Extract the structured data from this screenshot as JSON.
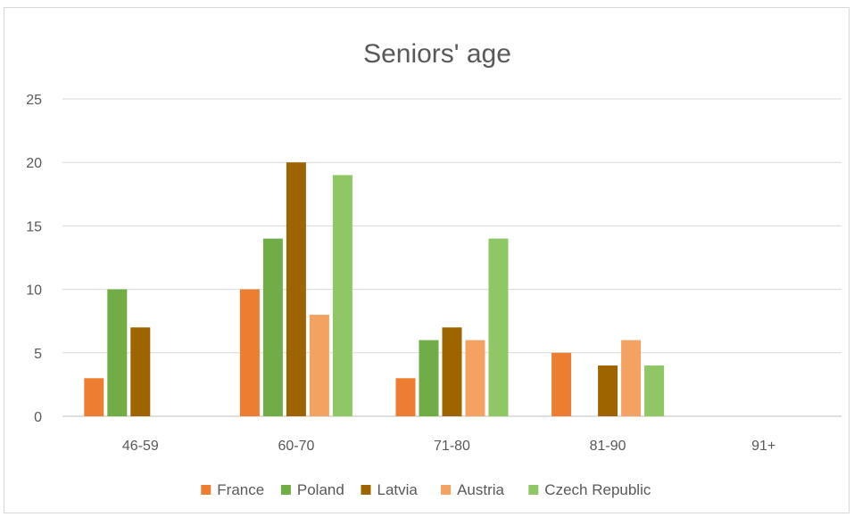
{
  "chart_data": {
    "type": "bar",
    "title": "Seniors' age",
    "xlabel": "",
    "ylabel": "",
    "categories": [
      "46-59",
      "60-70",
      "71-80",
      "81-90",
      "91+"
    ],
    "yticks": [
      "0",
      "5",
      "10",
      "15",
      "20",
      "25"
    ],
    "ylim": [
      0,
      25
    ],
    "grid": true,
    "legend_position": "bottom",
    "series": [
      {
        "name": "France",
        "color": "#ed7d31",
        "values": [
          3,
          10,
          3,
          5,
          0
        ]
      },
      {
        "name": "Poland",
        "color": "#70ad47",
        "values": [
          10,
          14,
          6,
          0,
          0
        ]
      },
      {
        "name": "Latvia",
        "color": "#9e6400",
        "values": [
          7,
          20,
          7,
          4,
          0
        ]
      },
      {
        "name": "Austria",
        "color": "#f4a262",
        "values": [
          0,
          8,
          6,
          6,
          0
        ]
      },
      {
        "name": "Czech Republic",
        "color": "#8fc766",
        "values": [
          0,
          19,
          14,
          4,
          0
        ]
      }
    ]
  }
}
